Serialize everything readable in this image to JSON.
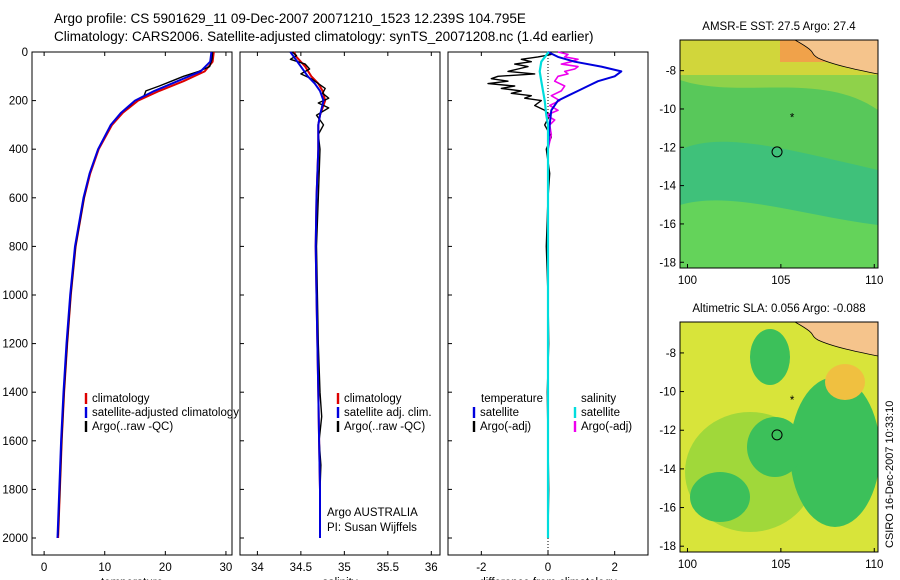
{
  "header": {
    "line1": "Argo profile: CS 5901629_11 09-Dec-2007 20071210_1523 12.239S 104.795E",
    "line2": "Climatology: CARS2006. Satellite-adjusted climatology: synTS_20071208.nc (1.4d earlier)"
  },
  "colors": {
    "climatology": "#dd0000",
    "satellite": "#0000dd",
    "argo": "#000000",
    "sal_satellite": "#00dddd",
    "sal_argo": "#ee00ee"
  },
  "chart_data": [
    {
      "type": "line",
      "name": "temperature-profile",
      "xlabel": "temperature",
      "ylabel": "",
      "xlim": [
        -2,
        31
      ],
      "ylim": [
        2070,
        0
      ],
      "xticks": [
        "0",
        "10",
        "20",
        "30"
      ],
      "yticks": [
        "0",
        "200",
        "400",
        "600",
        "800",
        "1000",
        "1200",
        "1400",
        "1600",
        "1800",
        "2000"
      ],
      "legend": [
        "climatology",
        "satellite-adjusted climatology",
        "Argo(..raw -QC)"
      ],
      "series": [
        {
          "name": "climatology",
          "depth": [
            0,
            40,
            80,
            120,
            160,
            200,
            250,
            300,
            400,
            500,
            600,
            800,
            1000,
            1200,
            1400,
            1600,
            1800,
            2000
          ],
          "values": [
            28,
            27.8,
            26.5,
            23,
            19,
            15.5,
            13,
            11.2,
            9,
            7.6,
            6.6,
            5.2,
            4.4,
            3.8,
            3.3,
            2.9,
            2.6,
            2.3
          ]
        },
        {
          "name": "satellite-adjusted climatology",
          "depth": [
            0,
            40,
            80,
            120,
            160,
            200,
            250,
            300,
            400,
            500,
            600,
            800,
            1000,
            1200,
            1400,
            1600,
            1800,
            2000
          ],
          "values": [
            27.6,
            27.4,
            25.8,
            22,
            18.2,
            15,
            12.7,
            11,
            8.9,
            7.5,
            6.5,
            5.1,
            4.3,
            3.7,
            3.2,
            2.8,
            2.5,
            2.2
          ]
        },
        {
          "name": "Argo(..raw -QC)",
          "depth": [
            0,
            30,
            60,
            80,
            100,
            120,
            140,
            160,
            180,
            200,
            220,
            250,
            300,
            400,
            500,
            600,
            800,
            1000,
            1200,
            1400,
            1600,
            1800,
            1990
          ],
          "values": [
            27.8,
            27.7,
            27.3,
            25.5,
            23,
            21,
            19,
            16.8,
            16.5,
            15,
            14.2,
            12.7,
            11,
            8.9,
            7.5,
            6.6,
            5.2,
            4.4,
            3.8,
            3.3,
            2.9,
            2.6,
            2.3
          ]
        }
      ]
    },
    {
      "type": "line",
      "name": "salinity-profile",
      "xlabel": "salinity",
      "xlim": [
        33.8,
        36.1
      ],
      "ylim": [
        2070,
        0
      ],
      "xticks": [
        "34",
        "34.5",
        "35",
        "35.5",
        "36"
      ],
      "legend": [
        "climatology",
        "satellite adj. clim.",
        "Argo(..raw -QC)"
      ],
      "annotation": [
        "Argo AUSTRALIA",
        "PI: Susan Wijffels"
      ],
      "series": [
        {
          "name": "climatology",
          "depth": [
            0,
            20,
            60,
            100,
            130,
            160,
            200,
            260,
            300,
            400,
            600,
            800,
            1000,
            1200,
            1400,
            1600,
            1800,
            2000
          ],
          "values": [
            34.42,
            34.45,
            34.55,
            34.62,
            34.7,
            34.75,
            34.78,
            34.72,
            34.7,
            34.7,
            34.68,
            34.67,
            34.68,
            34.69,
            34.7,
            34.71,
            34.72,
            34.72
          ]
        },
        {
          "name": "satellite adj. clim.",
          "depth": [
            0,
            20,
            60,
            100,
            130,
            160,
            200,
            260,
            300,
            400,
            600,
            800,
            1000,
            1200,
            1400,
            1600,
            1800,
            2000
          ],
          "values": [
            34.38,
            34.42,
            34.5,
            34.58,
            34.66,
            34.72,
            34.76,
            34.72,
            34.7,
            34.7,
            34.68,
            34.67,
            34.68,
            34.69,
            34.7,
            34.71,
            34.72,
            34.72
          ]
        },
        {
          "name": "Argo(..raw -QC)",
          "depth": [
            0,
            15,
            30,
            50,
            70,
            90,
            110,
            130,
            150,
            170,
            190,
            210,
            230,
            260,
            300,
            340,
            400,
            600,
            800,
            1000,
            1200,
            1400,
            1500,
            1600,
            1700,
            1800,
            1990
          ],
          "values": [
            34.4,
            34.45,
            34.38,
            34.55,
            34.6,
            34.5,
            34.62,
            34.7,
            34.78,
            34.75,
            34.82,
            34.7,
            34.82,
            34.68,
            34.76,
            34.7,
            34.72,
            34.7,
            34.68,
            34.69,
            34.7,
            34.72,
            34.74,
            34.71,
            34.73,
            34.72,
            34.72
          ]
        }
      ]
    },
    {
      "type": "line",
      "name": "difference-from-climatology",
      "xlabel": "difference from climatology",
      "xlim": [
        -3,
        3
      ],
      "ylim": [
        2070,
        0
      ],
      "xticks": [
        "-2",
        "0",
        "2"
      ],
      "legend_temperature": [
        "temperature",
        "satellite",
        "Argo(-adj)"
      ],
      "legend_salinity": [
        "salinity",
        "satellite",
        "Argo(-adj)"
      ],
      "series": [
        {
          "name": "temperature satellite",
          "depth": [
            0,
            20,
            40,
            60,
            80,
            100,
            120,
            140,
            160,
            180,
            200,
            240,
            300,
            400,
            600,
            1000,
            1500,
            2000
          ],
          "values": [
            0,
            0.3,
            0.8,
            1.6,
            2.2,
            2.0,
            1.5,
            1.2,
            0.9,
            0.6,
            0.3,
            0.1,
            0.05,
            0,
            0,
            0,
            0,
            0
          ]
        },
        {
          "name": "temperature Argo(-adj)",
          "depth": [
            0,
            10,
            20,
            30,
            40,
            50,
            60,
            70,
            80,
            90,
            100,
            110,
            120,
            130,
            140,
            150,
            160,
            170,
            180,
            190,
            200,
            220,
            240,
            260,
            300,
            350,
            400,
            500,
            600,
            800,
            1000,
            1200,
            1400,
            1600,
            1800,
            1990
          ],
          "values": [
            0,
            0.1,
            -0.3,
            -0.8,
            -0.5,
            -1.0,
            -0.6,
            -0.9,
            -1.2,
            -0.4,
            -1.5,
            -1.7,
            -1.2,
            -1.8,
            -1.0,
            -1.4,
            -0.8,
            -1.1,
            -0.5,
            -0.7,
            -0.2,
            -0.4,
            -0.1,
            0.05,
            -0.1,
            0.1,
            -0.05,
            0.05,
            0,
            -0.05,
            0,
            0.02,
            -0.02,
            0,
            0.02,
            0
          ]
        },
        {
          "name": "salinity satellite",
          "depth": [
            0,
            40,
            80,
            120,
            160,
            200,
            260,
            300,
            400,
            600,
            1000,
            1500,
            2000
          ],
          "values": [
            0.02,
            -0.2,
            -0.25,
            -0.2,
            -0.15,
            -0.1,
            -0.05,
            0,
            0,
            0,
            0,
            0,
            0
          ]
        },
        {
          "name": "salinity Argo(-adj)",
          "depth": [
            0,
            10,
            20,
            30,
            40,
            50,
            60,
            70,
            80,
            90,
            100,
            120,
            140,
            160,
            180,
            200,
            220,
            240,
            260,
            280,
            300,
            340,
            400,
            600,
            1000,
            1500,
            2000
          ],
          "values": [
            0.3,
            0.6,
            0.5,
            0.9,
            0.7,
            0.4,
            0.9,
            0.8,
            0.5,
            0.6,
            0.3,
            0.2,
            0.5,
            0.4,
            0.1,
            0.35,
            0.05,
            0.3,
            -0.05,
            0.2,
            0.05,
            0.1,
            0,
            0,
            0,
            0,
            0
          ]
        }
      ]
    },
    {
      "type": "heatmap",
      "name": "sst-map",
      "title": "AMSR-E SST: 27.5 Argo: 27.4",
      "xlim": [
        99.6,
        110.2
      ],
      "ylim": [
        -18.3,
        -6.4
      ],
      "xticks": [
        "100",
        "105",
        "110"
      ],
      "yticks": [
        "-8",
        "-10",
        "-12",
        "-14",
        "-16",
        "-18"
      ],
      "float_position": [
        104.795,
        -12.239
      ],
      "previous_position": [
        105.6,
        -10.5
      ]
    },
    {
      "type": "heatmap",
      "name": "sla-map",
      "title": "Altimetric SLA: 0.056 Argo: -0.088",
      "xlim": [
        99.6,
        110.2
      ],
      "ylim": [
        -18.3,
        -6.4
      ],
      "xticks": [
        "100",
        "105",
        "110"
      ],
      "yticks": [
        "-8",
        "-10",
        "-12",
        "-14",
        "-16",
        "-18"
      ],
      "float_position": [
        104.795,
        -12.239
      ],
      "previous_position": [
        105.6,
        -10.5
      ]
    }
  ],
  "footer": {
    "stamp": "CSIRO 16-Dec-2007 10:33:10"
  }
}
